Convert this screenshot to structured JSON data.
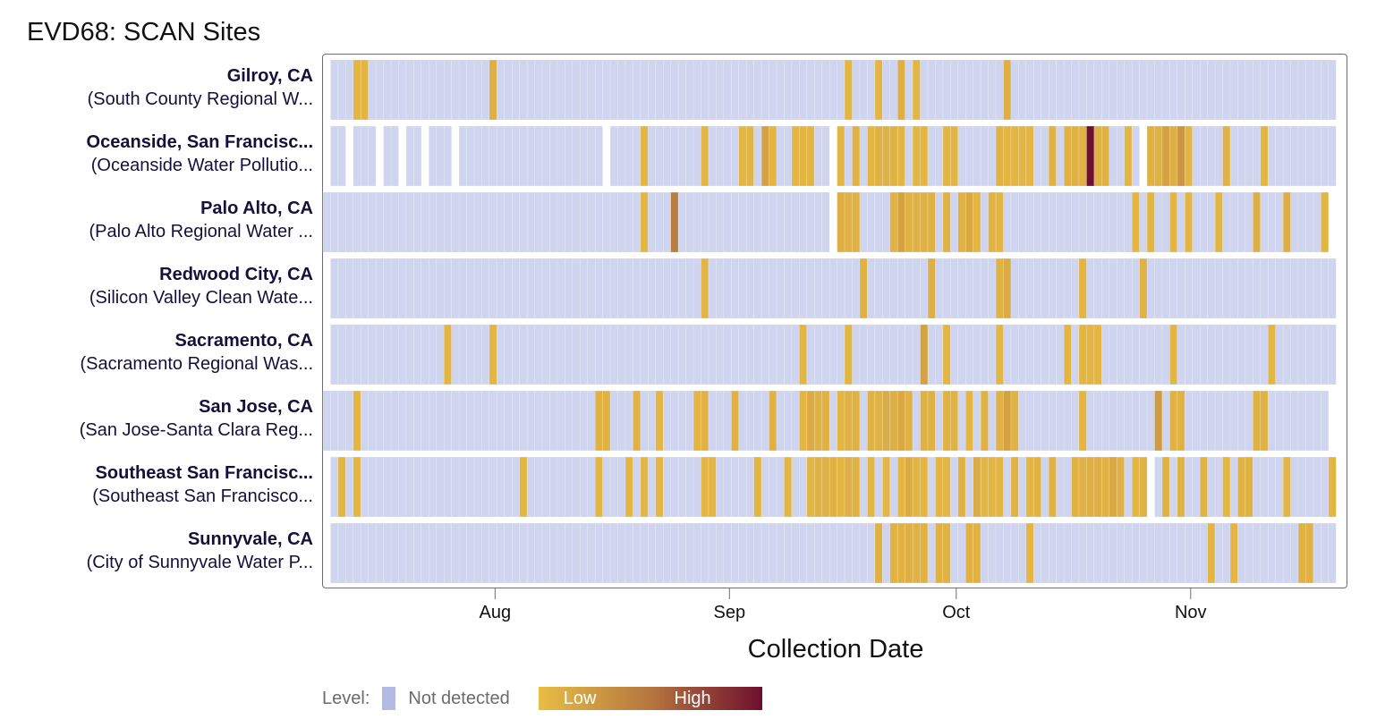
{
  "chart_data": {
    "type": "heatmap",
    "title": "EVD68: SCAN Sites",
    "xlabel": "Collection Date",
    "x_tick_labels": [
      "Aug",
      "Sep",
      "Oct",
      "Nov"
    ],
    "x_ticks": [
      "2023-08-01",
      "2023-09-01",
      "2023-10-01",
      "2023-11-01"
    ],
    "x_range": [
      "2023-07-09",
      "2023-11-20"
    ],
    "legend": {
      "title": "Level:",
      "not_detected_label": "Not detected",
      "low_label": "Low",
      "high_label": "High",
      "position": "bottom-left"
    },
    "colors": {
      "not_detected": "#cfd4ef",
      "low": "#e8bd45",
      "high": "#6e0f2e",
      "frame": "#6d6d6d"
    },
    "sites": [
      {
        "name": "Gilroy, CA",
        "facility": "(South County Regional W...",
        "start": "2023-07-10",
        "end": "2023-11-19",
        "missing": [],
        "detections": [
          {
            "date": "2023-07-13",
            "level": 0.05
          },
          {
            "date": "2023-07-14",
            "level": 0.05
          },
          {
            "date": "2023-07-31",
            "level": 0.1
          },
          {
            "date": "2023-09-16",
            "level": 0.05
          },
          {
            "date": "2023-09-20",
            "level": 0.05
          },
          {
            "date": "2023-09-23",
            "level": 0.1
          },
          {
            "date": "2023-09-25",
            "level": 0.05
          },
          {
            "date": "2023-10-07",
            "level": 0.1
          }
        ]
      },
      {
        "name": "Oceanside, San Francisc...",
        "facility": "(Oceanside Water Pollutio...",
        "start": "2023-07-10",
        "end": "2023-11-19",
        "missing": [
          "2023-07-12",
          "2023-07-16",
          "2023-07-19",
          "2023-07-22",
          "2023-07-26",
          "2023-08-15",
          "2023-09-14",
          "2023-10-25"
        ],
        "detections": [
          {
            "date": "2023-08-20",
            "level": 0.05
          },
          {
            "date": "2023-08-28",
            "level": 0.05
          },
          {
            "date": "2023-09-02",
            "level": 0.05
          },
          {
            "date": "2023-09-03",
            "level": 0.05
          },
          {
            "date": "2023-09-05",
            "level": 0.2
          },
          {
            "date": "2023-09-06",
            "level": 0.05
          },
          {
            "date": "2023-09-09",
            "level": 0.05
          },
          {
            "date": "2023-09-10",
            "level": 0.05
          },
          {
            "date": "2023-09-11",
            "level": 0.05
          },
          {
            "date": "2023-09-14",
            "level": 0.15
          },
          {
            "date": "2023-09-15",
            "level": 0.05
          },
          {
            "date": "2023-09-17",
            "level": 0.08
          },
          {
            "date": "2023-09-19",
            "level": 0.05
          },
          {
            "date": "2023-09-20",
            "level": 0.08
          },
          {
            "date": "2023-09-21",
            "level": 0.08
          },
          {
            "date": "2023-09-22",
            "level": 0.08
          },
          {
            "date": "2023-09-23",
            "level": 0.05
          },
          {
            "date": "2023-09-25",
            "level": 0.05
          },
          {
            "date": "2023-09-26",
            "level": 0.05
          },
          {
            "date": "2023-09-29",
            "level": 0.05
          },
          {
            "date": "2023-09-30",
            "level": 0.05
          },
          {
            "date": "2023-10-06",
            "level": 0.08
          },
          {
            "date": "2023-10-07",
            "level": 0.05
          },
          {
            "date": "2023-10-08",
            "level": 0.05
          },
          {
            "date": "2023-10-09",
            "level": 0.05
          },
          {
            "date": "2023-10-10",
            "level": 0.05
          },
          {
            "date": "2023-10-13",
            "level": 0.08
          },
          {
            "date": "2023-10-15",
            "level": 0.08
          },
          {
            "date": "2023-10-16",
            "level": 0.08
          },
          {
            "date": "2023-10-17",
            "level": 0.08
          },
          {
            "date": "2023-10-18",
            "level": 1.0
          },
          {
            "date": "2023-10-19",
            "level": 0.08
          },
          {
            "date": "2023-10-20",
            "level": 0.08
          },
          {
            "date": "2023-10-23",
            "level": 0.05
          },
          {
            "date": "2023-10-25",
            "level": 0.08
          },
          {
            "date": "2023-10-26",
            "level": 0.08
          },
          {
            "date": "2023-10-27",
            "level": 0.08
          },
          {
            "date": "2023-10-28",
            "level": 0.2
          },
          {
            "date": "2023-10-29",
            "level": 0.1
          },
          {
            "date": "2023-10-30",
            "level": 0.28
          },
          {
            "date": "2023-10-31",
            "level": 0.05
          },
          {
            "date": "2023-11-05",
            "level": 0.08
          },
          {
            "date": "2023-11-10",
            "level": 0.05
          }
        ]
      },
      {
        "name": "Palo Alto, CA",
        "facility": "(Palo Alto Regional Water ...",
        "start": "2023-07-09",
        "end": "2023-11-18",
        "missing": [
          "2023-09-14"
        ],
        "detections": [
          {
            "date": "2023-08-20",
            "level": 0.05
          },
          {
            "date": "2023-08-24",
            "level": 0.45
          },
          {
            "date": "2023-09-15",
            "level": 0.1
          },
          {
            "date": "2023-09-16",
            "level": 0.08
          },
          {
            "date": "2023-09-17",
            "level": 0.08
          },
          {
            "date": "2023-09-22",
            "level": 0.08
          },
          {
            "date": "2023-09-23",
            "level": 0.2
          },
          {
            "date": "2023-09-24",
            "level": 0.08
          },
          {
            "date": "2023-09-25",
            "level": 0.08
          },
          {
            "date": "2023-09-26",
            "level": 0.08
          },
          {
            "date": "2023-09-27",
            "level": 0.08
          },
          {
            "date": "2023-09-29",
            "level": 0.08
          },
          {
            "date": "2023-10-01",
            "level": 0.08
          },
          {
            "date": "2023-10-02",
            "level": 0.15
          },
          {
            "date": "2023-10-03",
            "level": 0.05
          },
          {
            "date": "2023-10-05",
            "level": 0.08
          },
          {
            "date": "2023-10-06",
            "level": 0.05
          },
          {
            "date": "2023-10-24",
            "level": 0.05
          },
          {
            "date": "2023-10-26",
            "level": 0.05
          },
          {
            "date": "2023-10-29",
            "level": 0.05
          },
          {
            "date": "2023-10-31",
            "level": 0.05
          },
          {
            "date": "2023-11-04",
            "level": 0.05
          },
          {
            "date": "2023-11-09",
            "level": 0.1
          },
          {
            "date": "2023-11-13",
            "level": 0.1
          },
          {
            "date": "2023-11-18",
            "level": 0.05
          }
        ]
      },
      {
        "name": "Redwood City, CA",
        "facility": "(Silicon Valley Clean Wate...",
        "start": "2023-07-10",
        "end": "2023-11-19",
        "missing": [],
        "detections": [
          {
            "date": "2023-08-28",
            "level": 0.05
          },
          {
            "date": "2023-09-18",
            "level": 0.08
          },
          {
            "date": "2023-09-27",
            "level": 0.1
          },
          {
            "date": "2023-10-06",
            "level": 0.08
          },
          {
            "date": "2023-10-07",
            "level": 0.12
          },
          {
            "date": "2023-10-17",
            "level": 0.05
          },
          {
            "date": "2023-10-25",
            "level": 0.08
          }
        ]
      },
      {
        "name": "Sacramento, CA",
        "facility": "(Sacramento Regional Was...",
        "start": "2023-07-10",
        "end": "2023-11-19",
        "missing": [],
        "detections": [
          {
            "date": "2023-07-25",
            "level": 0.05
          },
          {
            "date": "2023-07-31",
            "level": 0.05
          },
          {
            "date": "2023-09-10",
            "level": 0.05
          },
          {
            "date": "2023-09-16",
            "level": 0.05
          },
          {
            "date": "2023-09-26",
            "level": 0.2
          },
          {
            "date": "2023-09-29",
            "level": 0.05
          },
          {
            "date": "2023-10-06",
            "level": 0.05
          },
          {
            "date": "2023-10-15",
            "level": 0.05
          },
          {
            "date": "2023-10-17",
            "level": 0.05
          },
          {
            "date": "2023-10-18",
            "level": 0.05
          },
          {
            "date": "2023-10-19",
            "level": 0.05
          },
          {
            "date": "2023-10-29",
            "level": 0.05
          },
          {
            "date": "2023-11-11",
            "level": 0.05
          }
        ]
      },
      {
        "name": "San Jose, CA",
        "facility": "(San Jose-Santa Clara Reg...",
        "start": "2023-07-09",
        "end": "2023-11-18",
        "missing": [],
        "detections": [
          {
            "date": "2023-07-13",
            "level": 0.05
          },
          {
            "date": "2023-08-14",
            "level": 0.08
          },
          {
            "date": "2023-08-15",
            "level": 0.08
          },
          {
            "date": "2023-08-19",
            "level": 0.08
          },
          {
            "date": "2023-08-22",
            "level": 0.05
          },
          {
            "date": "2023-08-27",
            "level": 0.05
          },
          {
            "date": "2023-08-28",
            "level": 0.08
          },
          {
            "date": "2023-09-01",
            "level": 0.08
          },
          {
            "date": "2023-09-06",
            "level": 0.08
          },
          {
            "date": "2023-09-10",
            "level": 0.05
          },
          {
            "date": "2023-09-11",
            "level": 0.12
          },
          {
            "date": "2023-09-12",
            "level": 0.08
          },
          {
            "date": "2023-09-13",
            "level": 0.08
          },
          {
            "date": "2023-09-15",
            "level": 0.05
          },
          {
            "date": "2023-09-16",
            "level": 0.08
          },
          {
            "date": "2023-09-17",
            "level": 0.08
          },
          {
            "date": "2023-09-19",
            "level": 0.08
          },
          {
            "date": "2023-09-20",
            "level": 0.08
          },
          {
            "date": "2023-09-21",
            "level": 0.12
          },
          {
            "date": "2023-09-22",
            "level": 0.1
          },
          {
            "date": "2023-09-23",
            "level": 0.15
          },
          {
            "date": "2023-09-24",
            "level": 0.08
          },
          {
            "date": "2023-09-26",
            "level": 0.08
          },
          {
            "date": "2023-09-27",
            "level": 0.08
          },
          {
            "date": "2023-09-29",
            "level": 0.08
          },
          {
            "date": "2023-09-30",
            "level": 0.08
          },
          {
            "date": "2023-10-02",
            "level": 0.05
          },
          {
            "date": "2023-10-04",
            "level": 0.08
          },
          {
            "date": "2023-10-06",
            "level": 0.08
          },
          {
            "date": "2023-10-07",
            "level": 0.2
          },
          {
            "date": "2023-10-08",
            "level": 0.08
          },
          {
            "date": "2023-10-17",
            "level": 0.05
          },
          {
            "date": "2023-10-27",
            "level": 0.25
          },
          {
            "date": "2023-10-29",
            "level": 0.08
          },
          {
            "date": "2023-10-30",
            "level": 0.08
          },
          {
            "date": "2023-11-09",
            "level": 0.08
          },
          {
            "date": "2023-11-10",
            "level": 0.08
          }
        ]
      },
      {
        "name": "Southeast San Francisc...",
        "facility": "(Southeast San Francisco...",
        "start": "2023-07-10",
        "end": "2023-11-19",
        "missing": [
          "2023-10-26"
        ],
        "detections": [
          {
            "date": "2023-07-11",
            "level": 0.05
          },
          {
            "date": "2023-07-13",
            "level": 0.05
          },
          {
            "date": "2023-08-04",
            "level": 0.05
          },
          {
            "date": "2023-08-14",
            "level": 0.05
          },
          {
            "date": "2023-08-18",
            "level": 0.05
          },
          {
            "date": "2023-08-20",
            "level": 0.05
          },
          {
            "date": "2023-08-22",
            "level": 0.05
          },
          {
            "date": "2023-08-28",
            "level": 0.05
          },
          {
            "date": "2023-08-29",
            "level": 0.05
          },
          {
            "date": "2023-09-04",
            "level": 0.05
          },
          {
            "date": "2023-09-08",
            "level": 0.05
          },
          {
            "date": "2023-09-11",
            "level": 0.05
          },
          {
            "date": "2023-09-12",
            "level": 0.08
          },
          {
            "date": "2023-09-13",
            "level": 0.08
          },
          {
            "date": "2023-09-14",
            "level": 0.08
          },
          {
            "date": "2023-09-15",
            "level": 0.05
          },
          {
            "date": "2023-09-16",
            "level": 0.1
          },
          {
            "date": "2023-09-17",
            "level": 0.08
          },
          {
            "date": "2023-09-19",
            "level": 0.05
          },
          {
            "date": "2023-09-21",
            "level": 0.05
          },
          {
            "date": "2023-09-23",
            "level": 0.05
          },
          {
            "date": "2023-09-24",
            "level": 0.12
          },
          {
            "date": "2023-09-25",
            "level": 0.05
          },
          {
            "date": "2023-09-26",
            "level": 0.05
          },
          {
            "date": "2023-09-28",
            "level": 0.05
          },
          {
            "date": "2023-09-29",
            "level": 0.05
          },
          {
            "date": "2023-10-01",
            "level": 0.08
          },
          {
            "date": "2023-10-03",
            "level": 0.12
          },
          {
            "date": "2023-10-04",
            "level": 0.05
          },
          {
            "date": "2023-10-05",
            "level": 0.05
          },
          {
            "date": "2023-10-06",
            "level": 0.05
          },
          {
            "date": "2023-10-08",
            "level": 0.08
          },
          {
            "date": "2023-10-10",
            "level": 0.05
          },
          {
            "date": "2023-10-11",
            "level": 0.08
          },
          {
            "date": "2023-10-13",
            "level": 0.08
          },
          {
            "date": "2023-10-16",
            "level": 0.08
          },
          {
            "date": "2023-10-17",
            "level": 0.08
          },
          {
            "date": "2023-10-18",
            "level": 0.1
          },
          {
            "date": "2023-10-19",
            "level": 0.1
          },
          {
            "date": "2023-10-20",
            "level": 0.08
          },
          {
            "date": "2023-10-21",
            "level": 0.15
          },
          {
            "date": "2023-10-22",
            "level": 0.08
          },
          {
            "date": "2023-10-24",
            "level": 0.05
          },
          {
            "date": "2023-10-25",
            "level": 0.08
          },
          {
            "date": "2023-10-28",
            "level": 0.08
          },
          {
            "date": "2023-10-30",
            "level": 0.08
          },
          {
            "date": "2023-11-02",
            "level": 0.08
          },
          {
            "date": "2023-11-05",
            "level": 0.05
          },
          {
            "date": "2023-11-07",
            "level": 0.08
          },
          {
            "date": "2023-11-08",
            "level": 0.08
          },
          {
            "date": "2023-11-13",
            "level": 0.05
          },
          {
            "date": "2023-11-19",
            "level": 0.05
          }
        ]
      },
      {
        "name": "Sunnyvale, CA",
        "facility": "(City of Sunnyvale Water P...",
        "start": "2023-07-10",
        "end": "2023-11-19",
        "missing": [],
        "detections": [
          {
            "date": "2023-09-20",
            "level": 0.08
          },
          {
            "date": "2023-09-22",
            "level": 0.08
          },
          {
            "date": "2023-09-23",
            "level": 0.08
          },
          {
            "date": "2023-09-24",
            "level": 0.1
          },
          {
            "date": "2023-09-25",
            "level": 0.08
          },
          {
            "date": "2023-09-26",
            "level": 0.08
          },
          {
            "date": "2023-09-28",
            "level": 0.08
          },
          {
            "date": "2023-09-29",
            "level": 0.08
          },
          {
            "date": "2023-10-02",
            "level": 0.08
          },
          {
            "date": "2023-10-03",
            "level": 0.08
          },
          {
            "date": "2023-10-10",
            "level": 0.05
          },
          {
            "date": "2023-11-03",
            "level": 0.05
          },
          {
            "date": "2023-11-06",
            "level": 0.05
          },
          {
            "date": "2023-11-15",
            "level": 0.08
          },
          {
            "date": "2023-11-16",
            "level": 0.08
          }
        ]
      }
    ]
  }
}
